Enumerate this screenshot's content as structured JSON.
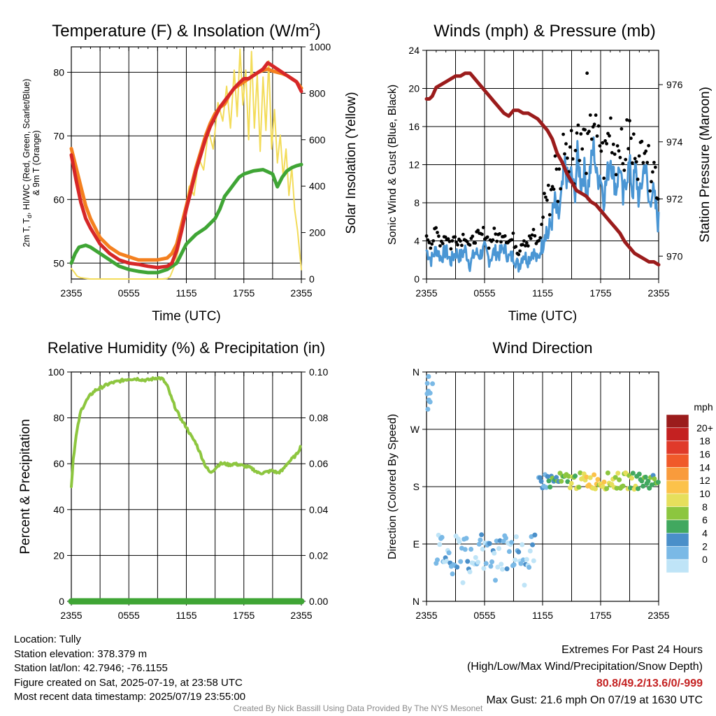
{
  "colors": {
    "temperature": "#d62728",
    "dewpoint": "#3fa535",
    "heat_index": "#f4801f",
    "insolation": "#f3dc5a",
    "wind": "#4a96d4",
    "gust": "#000000",
    "pressure": "#9b1c1c",
    "humidity": "#8dc63f",
    "precip": "#3fa535",
    "extremes_highlight": "#c42121"
  },
  "chart_data": [
    {
      "id": "temp",
      "type": "line",
      "title": "Temperature (F) & Insolation (W/m",
      "title_sup": "2",
      "title_close": ")",
      "xlabel": "Time (UTC)",
      "ylabel_left_lines": [
        "2m T, T",
        "d",
        ", HI/WC (Red, Green, Scarlet/Blue)",
        "& 9m T (Orange)"
      ],
      "ylabel_right": "Solar Insolation (Yellow)",
      "x_ticks": [
        "2355",
        "0555",
        "1155",
        "1755",
        "2355"
      ],
      "x_range": [
        0,
        24
      ],
      "y_left_range": [
        47.5,
        84
      ],
      "y_left_ticks": [
        50,
        60,
        70,
        80
      ],
      "y_right_range": [
        0,
        1000
      ],
      "y_right_ticks": [
        0,
        200,
        400,
        600,
        800,
        1000
      ],
      "grid": true,
      "series": [
        {
          "key": "insolation",
          "axis": "right",
          "x": [
            0,
            0.3,
            0.6,
            1,
            2,
            3,
            4,
            5,
            6,
            7,
            8,
            9,
            9.5,
            10,
            10.3,
            10.8,
            11.3,
            11.8,
            12.3,
            12.8,
            13.3,
            13.8,
            14.3,
            14.8,
            15.3,
            15.8,
            16.2,
            16.6,
            17,
            17.3,
            17.6,
            17.9,
            18.2,
            18.5,
            18.8,
            19.1,
            19.4,
            19.7,
            20,
            20.3,
            20.6,
            20.9,
            21.2,
            21.5,
            21.8,
            22.1,
            22.4,
            22.7,
            23,
            23.3,
            23.6,
            24
          ],
          "y": [
            45,
            30,
            12,
            5,
            0,
            0,
            0,
            0,
            0,
            0,
            0,
            0,
            0,
            2,
            10,
            60,
            150,
            280,
            400,
            360,
            520,
            470,
            640,
            560,
            760,
            680,
            830,
            650,
            900,
            700,
            990,
            750,
            900,
            600,
            980,
            650,
            880,
            550,
            870,
            640,
            940,
            560,
            730,
            500,
            620,
            440,
            560,
            360,
            480,
            300,
            210,
            40
          ]
        },
        {
          "key": "heat_index",
          "axis": "left",
          "x": [
            0,
            0.5,
            1,
            1.5,
            2,
            3,
            4,
            5,
            6,
            7,
            8,
            9,
            10,
            10.5,
            11,
            11.5,
            12,
            12.5,
            13,
            13.5,
            14,
            14.5,
            15,
            15.5,
            16,
            16.5,
            17,
            17.5,
            18,
            18.5,
            19,
            19.5,
            20,
            20.5,
            21,
            21.5,
            22,
            22.5,
            23,
            23.5,
            24
          ],
          "y": [
            68,
            65,
            62,
            59,
            57,
            54,
            52.5,
            51.5,
            51,
            50.5,
            50.5,
            50.5,
            50.8,
            51.5,
            53,
            56,
            59,
            62,
            65,
            67.5,
            70,
            72,
            73.5,
            74.5,
            75,
            76.5,
            77.5,
            78,
            78.5,
            79,
            79.5,
            80,
            80.3,
            80.5,
            80.2,
            80,
            79.8,
            79.5,
            79,
            78.5,
            77.5
          ]
        },
        {
          "key": "temperature",
          "axis": "left",
          "x": [
            0,
            0.5,
            1,
            1.5,
            2,
            3,
            4,
            5,
            6,
            7,
            8,
            9,
            10,
            10.5,
            11,
            11.5,
            12,
            12.5,
            13,
            13.5,
            14,
            14.5,
            15,
            15.5,
            16,
            16.5,
            17,
            17.5,
            18,
            18.5,
            19,
            19.5,
            20,
            20.5,
            21,
            21.5,
            22,
            22.5,
            23,
            23.5,
            24
          ],
          "y": [
            67,
            63,
            59.5,
            57,
            55.5,
            53,
            51.5,
            50.5,
            50,
            49.8,
            49.5,
            49.3,
            49.5,
            50,
            52,
            55,
            58.5,
            61.5,
            64.5,
            67,
            69.5,
            71.5,
            73,
            74.5,
            75.5,
            76.5,
            77.5,
            78.3,
            79,
            79,
            79.5,
            80,
            80.5,
            81.5,
            81,
            80.5,
            80,
            79.5,
            79,
            78.5,
            77
          ]
        },
        {
          "key": "dewpoint",
          "axis": "left",
          "x": [
            0,
            0.4,
            0.8,
            1.5,
            2,
            3,
            4,
            5,
            6,
            7,
            8,
            9,
            10,
            11,
            11.5,
            12,
            13,
            14,
            15,
            15.5,
            16,
            16.5,
            17,
            17.5,
            18,
            19,
            20,
            21,
            21.5,
            22,
            22.5,
            23,
            23.5,
            24
          ],
          "y": [
            50,
            51.5,
            52.5,
            52.8,
            52.5,
            51.5,
            50.5,
            49.5,
            49,
            48.7,
            48.5,
            48.5,
            49,
            50,
            51.5,
            53,
            54.5,
            55.5,
            57,
            58.5,
            60.5,
            61.5,
            62.5,
            63.5,
            64,
            64.5,
            64.7,
            64,
            62,
            63.5,
            64.5,
            65,
            65.3,
            65.5
          ]
        }
      ]
    },
    {
      "id": "wind",
      "type": "line",
      "title": "Winds (mph) & Pressure (mb)",
      "xlabel": "Time (UTC)",
      "ylabel_left": "Sonic Wind & Gust (Blue, Black)",
      "ylabel_right": "Station Pressure (Maroon)",
      "x_ticks": [
        "2355",
        "0555",
        "1155",
        "1755",
        "2355"
      ],
      "x_range": [
        0,
        24
      ],
      "y_left_range": [
        0,
        24
      ],
      "y_left_ticks": [
        0,
        4,
        8,
        12,
        16,
        20,
        24
      ],
      "y_right_range": [
        969.2,
        977.2
      ],
      "y_right_ticks": [
        970,
        972,
        974,
        976
      ],
      "grid": true,
      "series": [
        {
          "key": "wind",
          "axis": "left",
          "x": [
            0,
            0.5,
            1,
            1.5,
            2,
            2.5,
            3,
            3.5,
            4,
            4.5,
            5,
            5.5,
            6,
            6.5,
            7,
            7.5,
            8,
            8.5,
            9,
            9.5,
            10,
            10.5,
            11,
            11.5,
            12,
            12.3,
            12.6,
            13,
            13.3,
            13.6,
            14,
            14.3,
            14.6,
            15,
            15.3,
            15.6,
            16,
            16.3,
            16.6,
            17,
            17.3,
            17.6,
            18,
            18.3,
            18.6,
            19,
            19.3,
            19.6,
            20,
            20.3,
            20.6,
            21,
            21.3,
            21.6,
            22,
            22.3,
            22.6,
            23,
            23.3,
            23.6,
            24
          ],
          "y": [
            3,
            2,
            3.2,
            2.2,
            3,
            1.8,
            2.8,
            2.3,
            3.1,
            1.5,
            2.8,
            2.5,
            3.2,
            2,
            2.9,
            2.6,
            3.3,
            2.2,
            2.4,
            1.3,
            2.6,
            2,
            3,
            1.8,
            4,
            5.5,
            4.5,
            6.5,
            8,
            6,
            9,
            12,
            10,
            11,
            8.5,
            13,
            10,
            11.5,
            9,
            12,
            14,
            10.5,
            11,
            8.5,
            10.2,
            13,
            11,
            9.5,
            12,
            8,
            10.5,
            12,
            9,
            11.5,
            8,
            10.5,
            12.5,
            7.5,
            9.5,
            8,
            5.8
          ]
        },
        {
          "key": "pressure",
          "axis": "right",
          "x": [
            0,
            0.3,
            0.6,
            1,
            1.5,
            2,
            2.5,
            3,
            3.5,
            4,
            4.5,
            5,
            5.5,
            6,
            6.5,
            7,
            7.5,
            8,
            8.5,
            9,
            9.5,
            10,
            10.5,
            11,
            11.5,
            12,
            12.5,
            13,
            13.5,
            14,
            14.5,
            15,
            15.5,
            16,
            16.5,
            17,
            17.5,
            18,
            18.5,
            19,
            19.5,
            20,
            20.5,
            21,
            21.5,
            22,
            22.5,
            23,
            23.5,
            24
          ],
          "y": [
            975.5,
            975.5,
            975.6,
            975.9,
            976,
            976.1,
            976.2,
            976.3,
            976.3,
            976.4,
            976.4,
            976.2,
            976,
            975.8,
            975.6,
            975.4,
            975.2,
            975,
            974.9,
            975.1,
            975.1,
            975,
            975,
            974.9,
            974.8,
            974.6,
            974.4,
            974.1,
            973.6,
            973.3,
            972.9,
            972.6,
            972.3,
            972.2,
            972.1,
            971.9,
            971.8,
            971.6,
            971.4,
            971.2,
            971,
            970.8,
            970.5,
            970.3,
            970.1,
            970.0,
            969.9,
            969.8,
            969.8,
            969.7
          ]
        }
      ]
    },
    {
      "id": "rh",
      "type": "line",
      "title": "Relative Humidity (%) & Precipitation (in)",
      "ylabel_left": "Percent & Precipitation",
      "x_ticks": [
        "2355",
        "0555",
        "1155",
        "1755",
        "2355"
      ],
      "x_range": [
        0,
        24
      ],
      "y_left_range": [
        0,
        100
      ],
      "y_left_ticks": [
        0,
        20,
        40,
        60,
        80,
        100
      ],
      "y_right_range": [
        0,
        0.1
      ],
      "y_right_ticks": [
        "0.00",
        "0.02",
        "0.04",
        "0.06",
        "0.08",
        "0.10"
      ],
      "grid": true,
      "series": [
        {
          "key": "humidity",
          "axis": "left",
          "x": [
            0,
            0.2,
            0.5,
            0.8,
            1,
            1.5,
            2,
            2.5,
            3,
            3.5,
            4,
            4.5,
            5,
            5.5,
            6,
            6.5,
            7,
            7.5,
            8,
            8.5,
            9,
            9.5,
            10,
            10.5,
            11,
            11.5,
            12,
            12.5,
            13,
            13.5,
            14,
            14.5,
            15,
            15.5,
            16,
            16.5,
            17,
            17.5,
            18,
            18.5,
            19,
            19.5,
            20,
            20.5,
            21,
            21.5,
            22,
            22.5,
            23,
            23.5,
            24
          ],
          "y": [
            50,
            62,
            72,
            79,
            83,
            87,
            90,
            92,
            93,
            94,
            95,
            95.5,
            96,
            96.5,
            97,
            97,
            97,
            96.5,
            96.5,
            97,
            97.5,
            97,
            94,
            88,
            83,
            79,
            76,
            72,
            69,
            64,
            59,
            56,
            58,
            60,
            60,
            59.5,
            60,
            59.5,
            59,
            58.5,
            57.5,
            56,
            56,
            56.5,
            57,
            56,
            57,
            60,
            62,
            64,
            68
          ]
        },
        {
          "key": "precip",
          "axis": "right",
          "x": [
            0,
            24
          ],
          "y": [
            0,
            0
          ]
        }
      ]
    },
    {
      "id": "dir",
      "type": "scatter",
      "title": "Wind Direction",
      "ylabel_left": "Direction (Colored By Speed)",
      "x_ticks": [
        "2355",
        "0555",
        "1155",
        "1755",
        "2355"
      ],
      "x_range": [
        0,
        24
      ],
      "y_range": [
        0,
        360
      ],
      "y_ticks": [
        "N",
        "E",
        "S",
        "W",
        "N"
      ],
      "grid": true,
      "colorbar": {
        "title": "mph",
        "labels": [
          "20+",
          "18",
          "16",
          "14",
          "12",
          "10",
          "8",
          "6",
          "4",
          "2",
          "0"
        ],
        "colors": [
          "#9b1c1c",
          "#c42121",
          "#e03a2a",
          "#f05a2a",
          "#f99b3c",
          "#fcc24a",
          "#e6df5c",
          "#8cc63f",
          "#41a85f",
          "#4a8fc9",
          "#7ab9e6",
          "#bfe4f7"
        ]
      },
      "speed_colors": [
        "#bfe4f7",
        "#7ab9e6",
        "#4a8fc9",
        "#41a85f",
        "#8cc63f",
        "#e6df5c",
        "#fcc24a",
        "#f99b3c",
        "#f05a2a",
        "#e03a2a",
        "#c42121",
        "#9b1c1c"
      ]
    }
  ],
  "info": {
    "location": "Location: Tully",
    "elevation": "Station elevation: 378.379 m",
    "latlon": "Station lat/lon: 42.7946; -76.1155",
    "created": "Figure created on Sat, 2025-07-19, at 23:58 UTC",
    "recent": "Most recent data timestamp: 2025/07/19 23:55:00"
  },
  "extremes": {
    "title": "Extremes For Past 24 Hours",
    "subtitle": "(High/Low/Max Wind/Precipitation/Snow Depth)",
    "values": "80.8/49.2/13.6/0/-999",
    "gust": "Max Gust: 21.6 mph On 07/19 at 1630 UTC"
  },
  "credit": "Created By Nick Bassill Using Data Provided By The NYS Mesonet"
}
